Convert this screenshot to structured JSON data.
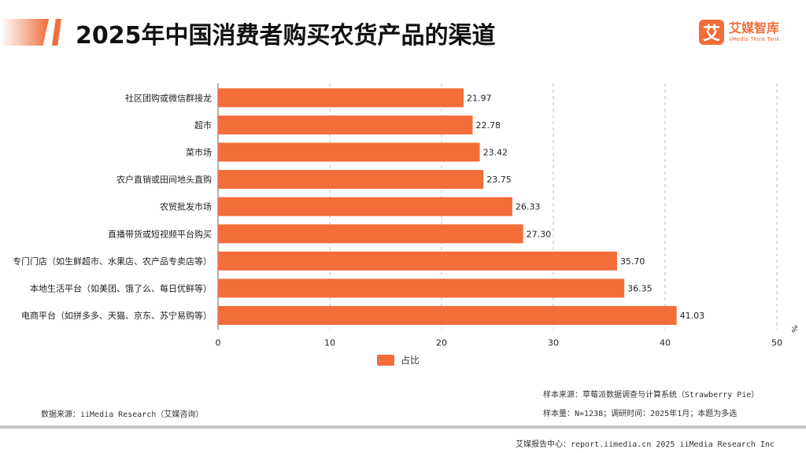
{
  "title": "2025年中国消费者购买农货产品的渠道",
  "logo": {
    "cn": "艾媒智库",
    "en": "iiMedia Think Tank",
    "mark": "艾"
  },
  "colors": {
    "bar": "#f26d3a",
    "accent": "#f26d3a",
    "grid": "#bdbdbd"
  },
  "chart_data": {
    "type": "bar",
    "orientation": "horizontal",
    "categories": [
      "社区团购或微信群接龙",
      "超市",
      "菜市场",
      "农户直销或田间地头直购",
      "农贸批发市场",
      "直播带货或短视频平台购买",
      "专门门店（如生鲜超市、水果店、农产品专卖店等）",
      "本地生活平台（如美团、饿了么、每日优鲜等）",
      "电商平台（如拼多多、天猫、京东、苏宁易购等）"
    ],
    "series": [
      {
        "name": "占比",
        "values": [
          21.97,
          22.78,
          23.42,
          23.75,
          26.33,
          27.3,
          35.7,
          36.35,
          41.03
        ]
      }
    ],
    "value_labels": [
      "21.97",
      "22.78",
      "23.42",
      "23.75",
      "26.33",
      "27.30",
      "35.70",
      "36.35",
      "41.03"
    ],
    "xlim": [
      0,
      50
    ],
    "xticks": [
      0,
      10,
      20,
      30,
      40,
      50
    ],
    "unit": "%",
    "grid": "vertical dashed",
    "legend_position": "bottom-center"
  },
  "footer": {
    "source": "数据来源：iiMedia Research（艾媒咨询）",
    "sample_source": "样本来源：草莓派数据调查与计算系统（Strawberry Pie）",
    "sample_size": "样本量：N=1238；调研时间：2025年1月；本题为多选",
    "report": "艾媒报告中心：report.iimedia.cn  2025 iiMedia Research Inc"
  }
}
